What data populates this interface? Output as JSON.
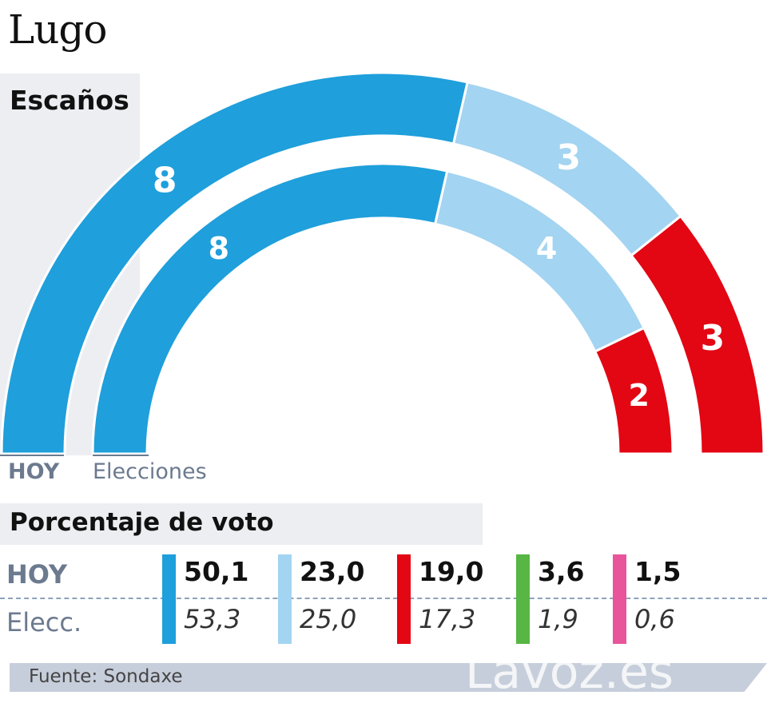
{
  "title": "Lugo",
  "seats_label": "Escaños",
  "votes_label": "Porcentaje de voto",
  "ring_labels": {
    "outer": "HOY",
    "inner": "Elecciones"
  },
  "row_labels": {
    "now": "HOY",
    "prev": "Elecc."
  },
  "source": "Fuente: Sondaxe",
  "watermark": "Lavoz.es",
  "colors": {
    "dark_blue": "#1f9fdb",
    "light_blue": "#a3d4f1",
    "red": "#e30613",
    "green": "#57b644",
    "pink": "#e8559b"
  },
  "chart_data": [
    {
      "type": "pie",
      "title": "Escaños",
      "subtype": "semicircle-parliament",
      "series": [
        {
          "name": "HOY",
          "values": [
            8,
            3,
            3
          ]
        },
        {
          "name": "Elecciones",
          "values": [
            8,
            4,
            2
          ]
        }
      ],
      "colors": [
        "#1f9fdb",
        "#a3d4f1",
        "#e30613"
      ]
    },
    {
      "type": "table",
      "title": "Porcentaje de voto",
      "series": [
        {
          "name": "HOY",
          "values": [
            "50,1",
            "23,0",
            "19,0",
            "3,6",
            "1,5"
          ]
        },
        {
          "name": "Elecc.",
          "values": [
            "53,3",
            "25,0",
            "17,3",
            "1,9",
            "0,6"
          ]
        }
      ],
      "colors": [
        "#1f9fdb",
        "#a3d4f1",
        "#e30613",
        "#57b644",
        "#e8559b"
      ]
    }
  ]
}
